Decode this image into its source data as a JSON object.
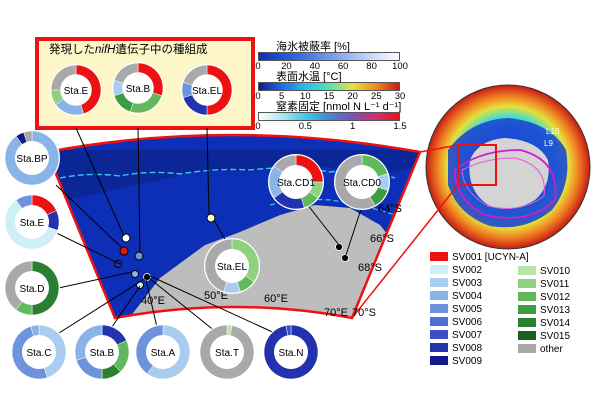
{
  "inset_title": "発現したnifH遺伝子中の種組成",
  "inset_title_parts": {
    "pre": "発現した",
    "gene": "nifH",
    "post": "遺伝子中の種組成"
  },
  "colorbars": [
    {
      "title": "海氷被蔽率 [%]",
      "ticks": [
        "0",
        "20",
        "40",
        "60",
        "80",
        "100"
      ]
    },
    {
      "title": "表面水温 [°C]",
      "ticks": [
        "0",
        "5",
        "10",
        "15",
        "20",
        "25",
        "30"
      ]
    },
    {
      "title": "窒素固定 [nmol N L⁻¹ d⁻¹]",
      "ticks": [
        "0",
        "0.5",
        "1",
        "1.5"
      ]
    }
  ],
  "stations": {
    "E_top": "Sta.E",
    "B_top": "Sta.B",
    "EL_top": "Sta.EL",
    "BP": "Sta.BP",
    "E": "Sta.E",
    "D": "Sta.D",
    "CD1": "Sta.CD1",
    "CD0": "Sta.CD0",
    "EL": "Sta.EL",
    "C": "Sta.C",
    "B": "Sta.B",
    "A": "Sta.A",
    "T": "Sta.T",
    "N": "Sta.N"
  },
  "map_labels": {
    "lat64": "64°S",
    "lat66": "66°S",
    "lat68": "68°S",
    "lat70": "70°S",
    "lon40": "40°E",
    "lon50": "50°E",
    "lon60": "60°E",
    "lon70": "70°E"
  },
  "globe_labels": {
    "L10": "L10",
    "L9": "L9"
  },
  "legend": [
    {
      "label": "SV001 [UCYN-A]",
      "color": "#ee1111"
    },
    {
      "label": "SV002",
      "color": "#cfeff7"
    },
    {
      "label": "SV003",
      "color": "#a9cdee"
    },
    {
      "label": "SV004",
      "color": "#8ab4e8"
    },
    {
      "label": "SV005",
      "color": "#6d93df"
    },
    {
      "label": "SV006",
      "color": "#4f6fd6"
    },
    {
      "label": "SV007",
      "color": "#3b4fc8"
    },
    {
      "label": "SV008",
      "color": "#2333b0"
    },
    {
      "label": "SV009",
      "color": "#101a8a"
    },
    {
      "label": "SV010",
      "color": "#b9e6a6"
    },
    {
      "label": "SV011",
      "color": "#8fd17e"
    },
    {
      "label": "SV012",
      "color": "#62b85c"
    },
    {
      "label": "SV013",
      "color": "#3f9c42"
    },
    {
      "label": "SV014",
      "color": "#2a7f30"
    },
    {
      "label": "SV015",
      "color": "#1b5e20"
    },
    {
      "label": "other",
      "color": "#a9a9a9"
    }
  ],
  "colors": {
    "frame_red": "#ee1111",
    "inset_bg": "#fcf6c8",
    "ocean_blue": "#0d2fb8",
    "land_gray": "#bdbdbd",
    "other_gray": "#a9a9a9"
  },
  "donut_compositions": {
    "E_top": [
      [
        "SV001",
        0.45
      ],
      [
        "SV004",
        0.2
      ],
      [
        "SV011",
        0.1
      ],
      [
        "other",
        0.25
      ]
    ],
    "B_top": [
      [
        "SV001",
        0.3
      ],
      [
        "SV012",
        0.25
      ],
      [
        "SV013",
        0.15
      ],
      [
        "SV003",
        0.1
      ],
      [
        "other",
        0.2
      ]
    ],
    "EL_top": [
      [
        "SV001",
        0.5
      ],
      [
        "SV008",
        0.2
      ],
      [
        "SV005",
        0.1
      ],
      [
        "other",
        0.2
      ]
    ],
    "BP": [
      [
        "SV004",
        0.9
      ],
      [
        "SV009",
        0.05
      ],
      [
        "other",
        0.05
      ]
    ],
    "E": [
      [
        "SV001",
        0.18
      ],
      [
        "SV008",
        0.12
      ],
      [
        "SV002",
        0.6
      ],
      [
        "SV005",
        0.1
      ]
    ],
    "D": [
      [
        "SV014",
        0.5
      ],
      [
        "SV012",
        0.1
      ],
      [
        "other",
        0.4
      ]
    ],
    "CD1": [
      [
        "SV001",
        0.25
      ],
      [
        "SV011",
        0.1
      ],
      [
        "SV012",
        0.1
      ],
      [
        "SV008",
        0.2
      ],
      [
        "SV004",
        0.2
      ],
      [
        "other",
        0.15
      ]
    ],
    "CD0": [
      [
        "SV012",
        0.2
      ],
      [
        "SV003",
        0.1
      ],
      [
        "SV013",
        0.12
      ],
      [
        "other",
        0.58
      ]
    ],
    "EL": [
      [
        "SV011",
        0.35
      ],
      [
        "SV012",
        0.1
      ],
      [
        "SV003",
        0.1
      ],
      [
        "other",
        0.45
      ]
    ],
    "C": [
      [
        "SV003",
        0.45
      ],
      [
        "SV005",
        0.5
      ],
      [
        "SV004",
        0.05
      ]
    ],
    "B": [
      [
        "SV008",
        0.18
      ],
      [
        "SV012",
        0.2
      ],
      [
        "SV014",
        0.12
      ],
      [
        "SV005",
        0.2
      ],
      [
        "SV004",
        0.3
      ]
    ],
    "A": [
      [
        "SV003",
        0.6
      ],
      [
        "SV005",
        0.4
      ]
    ],
    "T": [
      [
        "SV010",
        0.03
      ],
      [
        "other",
        0.97
      ]
    ],
    "N": [
      [
        "SV008",
        0.97
      ],
      [
        "SV007",
        0.03
      ]
    ]
  }
}
